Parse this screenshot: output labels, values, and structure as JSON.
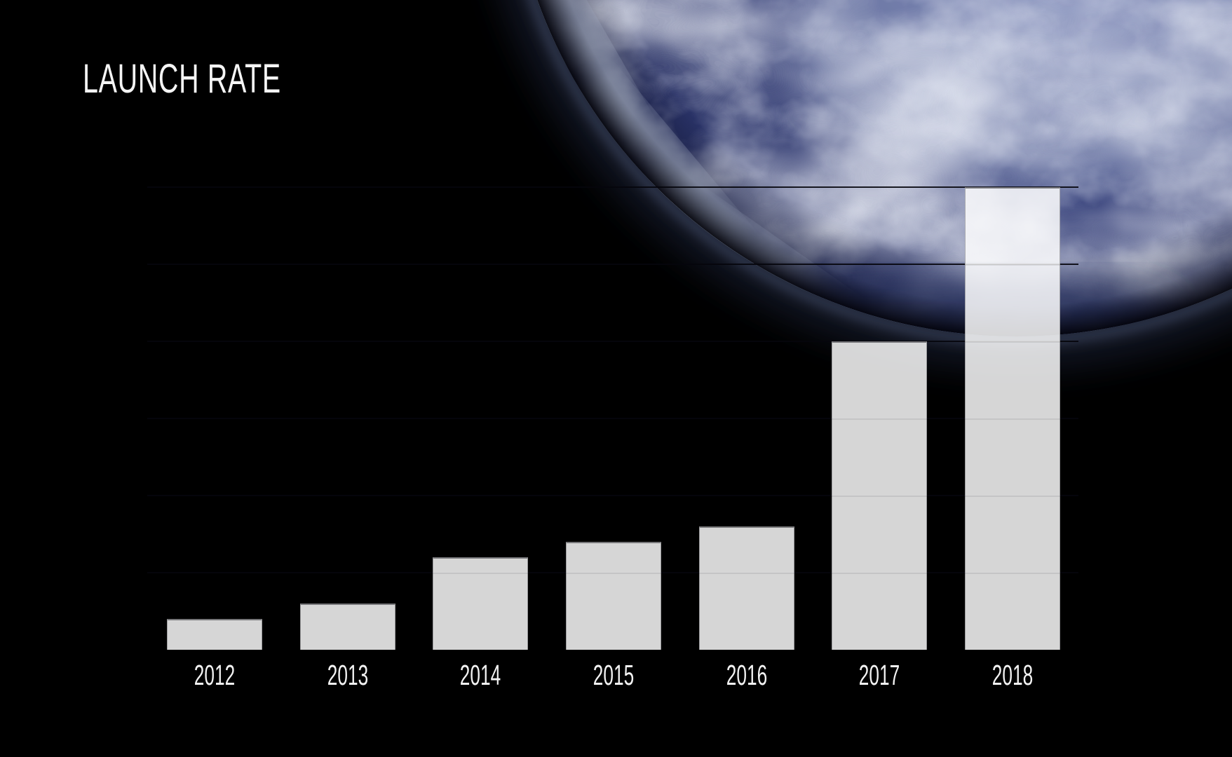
{
  "slide": {
    "title": "LAUNCH RATE",
    "background_scene": "earth-from-space-upper-right"
  },
  "chart_data": {
    "type": "bar",
    "title": "LAUNCH RATE",
    "categories": [
      "2012",
      "2013",
      "2014",
      "2015",
      "2016",
      "2017",
      "2018"
    ],
    "values": [
      2,
      3,
      6,
      7,
      8,
      20,
      30
    ],
    "xlabel": "",
    "ylabel": "",
    "ylim": [
      0,
      30
    ],
    "gridline_interval": 5,
    "grid": "horizontal",
    "legend_position": "none",
    "colors": {
      "background": "#000000",
      "bar_fill": "rgba(255,255,255,0.84)",
      "bar_fill_over_black": "#d4d4d4",
      "bar_top_edge": "#4a4a4e",
      "gridline": "#05050c",
      "label_text": "#f2f2f2",
      "title_text": "#f5f5f5",
      "earth_ocean": "#2a3368",
      "earth_clouds": "#e8ecf7",
      "earth_atmosphere": "#8ca2d8"
    }
  }
}
